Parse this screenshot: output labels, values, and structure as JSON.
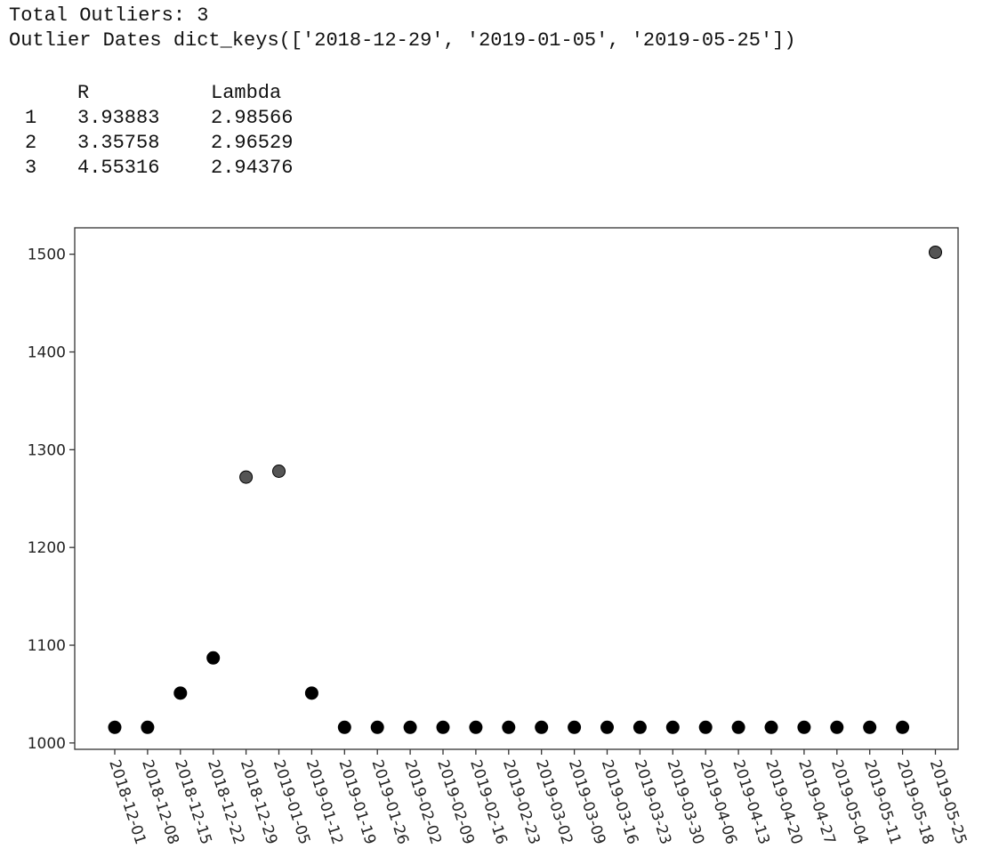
{
  "output": {
    "total_line": "Total Outliers: 3",
    "dates_line": "Outlier Dates dict_keys(['2018-12-29', '2019-01-05', '2019-05-25'])"
  },
  "table": {
    "headers": [
      "",
      "R",
      "Lambda"
    ],
    "rows": [
      [
        "1",
        "3.93883",
        "2.98566"
      ],
      [
        "2",
        "3.35758",
        "2.96529"
      ],
      [
        "3",
        "4.55316",
        "2.94376"
      ]
    ]
  },
  "chart_data": {
    "type": "scatter",
    "title": "",
    "xlabel": "",
    "ylabel": "",
    "x": [
      "2018-12-01",
      "2018-12-08",
      "2018-12-15",
      "2018-12-22",
      "2018-12-29",
      "2019-01-05",
      "2019-01-12",
      "2019-01-19",
      "2019-01-26",
      "2019-02-02",
      "2019-02-09",
      "2019-02-16",
      "2019-02-23",
      "2019-03-02",
      "2019-03-09",
      "2019-03-16",
      "2019-03-23",
      "2019-03-30",
      "2019-04-06",
      "2019-04-13",
      "2019-04-20",
      "2019-04-27",
      "2019-05-04",
      "2019-05-11",
      "2019-05-18",
      "2019-05-25"
    ],
    "values": [
      1016,
      1016,
      1051,
      1087,
      1272,
      1278,
      1051,
      1016,
      1016,
      1016,
      1016,
      1016,
      1016,
      1016,
      1016,
      1016,
      1016,
      1016,
      1016,
      1016,
      1016,
      1016,
      1016,
      1016,
      1016,
      1502
    ],
    "outliers": [
      "2018-12-29",
      "2019-01-05",
      "2019-05-25"
    ],
    "yticks": [
      1000,
      1100,
      1200,
      1300,
      1400,
      1500
    ],
    "ylim": [
      993.5,
      1527
    ],
    "grid": false,
    "colors": {
      "point": "#000000",
      "outlier": "#555555",
      "axes": "#333333"
    }
  }
}
